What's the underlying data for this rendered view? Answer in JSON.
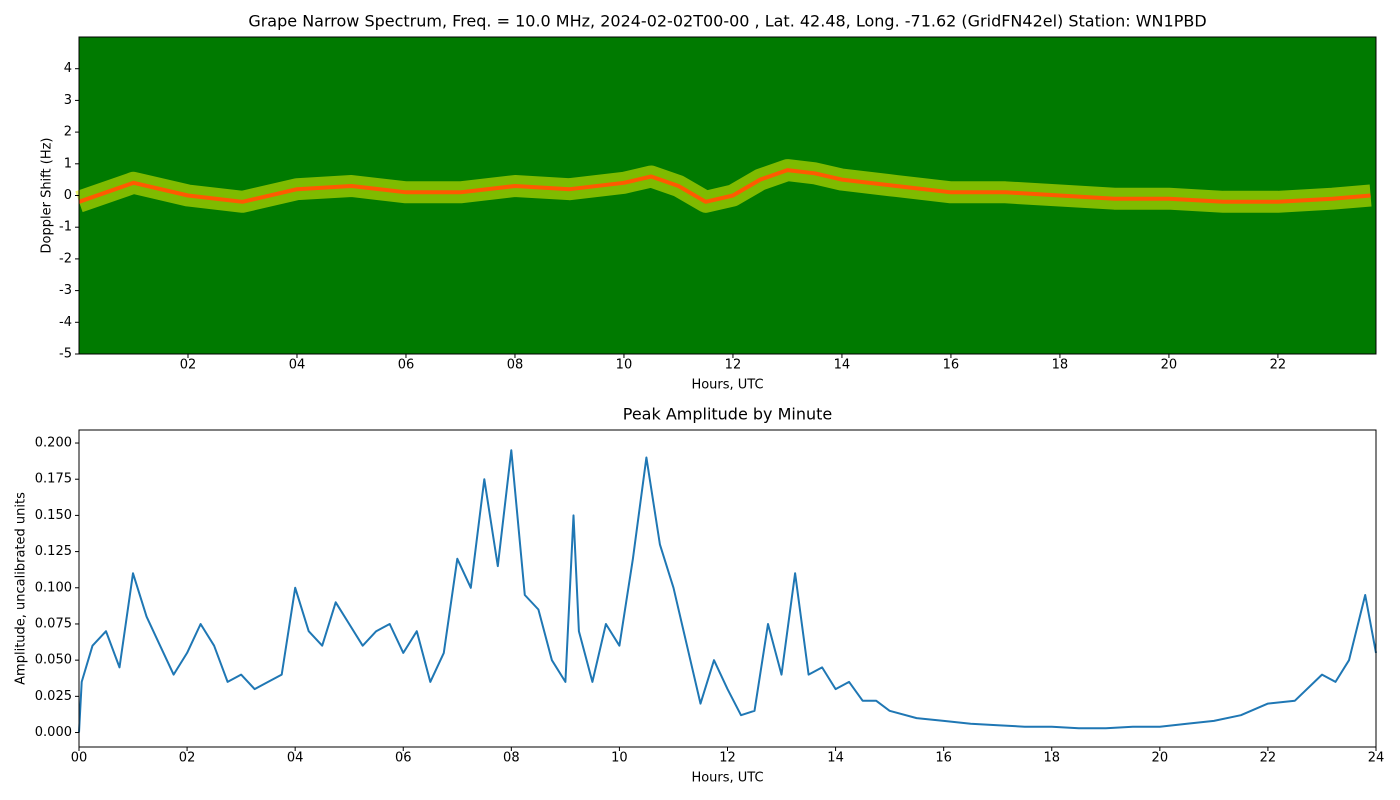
{
  "chart_data": [
    {
      "type": "spectrogram",
      "title": "Grape Narrow Spectrum, Freq. = 10.0 MHz, 2024-02-02T00-00 , Lat.  42.48, Long. -71.62 (GridFN42el) Station: WN1PBD",
      "x_label": "Hours, UTC",
      "y_label": "Doppler Shift (Hz)",
      "x": [
        0,
        1,
        2,
        3,
        4,
        5,
        6,
        7,
        8,
        9,
        10,
        10.5,
        11,
        11.5,
        12,
        12.5,
        13,
        13.5,
        14,
        15,
        16,
        17,
        18,
        19,
        20,
        21,
        22,
        23,
        23.7
      ],
      "values": [
        -0.2,
        0.4,
        0.0,
        -0.2,
        0.2,
        0.3,
        0.1,
        0.1,
        0.3,
        0.2,
        0.4,
        0.6,
        0.3,
        -0.2,
        0.0,
        0.5,
        0.8,
        0.7,
        0.5,
        0.3,
        0.1,
        0.1,
        0.0,
        -0.1,
        -0.1,
        -0.2,
        -0.2,
        -0.1,
        0.0
      ],
      "color": "#ff5a00",
      "background": "#007a00",
      "xlim": [
        0,
        23.8
      ],
      "ylim": [
        -5,
        5
      ],
      "xticks": [
        {
          "value": 2,
          "label": "02"
        },
        {
          "value": 4,
          "label": "04"
        },
        {
          "value": 6,
          "label": "06"
        },
        {
          "value": 8,
          "label": "08"
        },
        {
          "value": 10,
          "label": "10"
        },
        {
          "value": 12,
          "label": "12"
        },
        {
          "value": 14,
          "label": "14"
        },
        {
          "value": 16,
          "label": "16"
        },
        {
          "value": 18,
          "label": "18"
        },
        {
          "value": 20,
          "label": "20"
        },
        {
          "value": 22,
          "label": "22"
        }
      ],
      "yticks": [
        -5,
        -4,
        -3,
        -2,
        -1,
        0,
        1,
        2,
        3,
        4
      ]
    },
    {
      "type": "line",
      "title": "Peak Amplitude by Minute",
      "x_label": "Hours, UTC",
      "y_label": "Amplitude, uncalibrated units",
      "x": [
        0,
        0.05,
        0.25,
        0.5,
        0.75,
        1.0,
        1.25,
        1.5,
        1.75,
        2.0,
        2.25,
        2.5,
        2.75,
        3.0,
        3.25,
        3.5,
        3.75,
        4.0,
        4.25,
        4.5,
        4.75,
        5.0,
        5.25,
        5.5,
        5.75,
        6.0,
        6.25,
        6.5,
        6.75,
        7.0,
        7.25,
        7.5,
        7.75,
        8.0,
        8.25,
        8.5,
        8.75,
        9.0,
        9.15,
        9.25,
        9.5,
        9.75,
        10.0,
        10.25,
        10.5,
        10.75,
        11.0,
        11.25,
        11.5,
        11.75,
        12.0,
        12.25,
        12.5,
        12.75,
        13.0,
        13.25,
        13.5,
        13.75,
        14.0,
        14.25,
        14.5,
        14.75,
        15.0,
        15.5,
        16,
        16.5,
        17,
        17.5,
        18,
        18.5,
        19,
        19.5,
        20,
        20.5,
        21,
        21.5,
        22,
        22.5,
        23,
        23.25,
        23.5,
        23.8,
        24
      ],
      "values": [
        0.0,
        0.035,
        0.06,
        0.07,
        0.045,
        0.11,
        0.08,
        0.06,
        0.04,
        0.055,
        0.075,
        0.06,
        0.035,
        0.04,
        0.03,
        0.035,
        0.04,
        0.1,
        0.07,
        0.06,
        0.09,
        0.075,
        0.06,
        0.07,
        0.075,
        0.055,
        0.07,
        0.035,
        0.055,
        0.12,
        0.1,
        0.175,
        0.115,
        0.195,
        0.095,
        0.085,
        0.05,
        0.035,
        0.15,
        0.07,
        0.035,
        0.075,
        0.06,
        0.12,
        0.19,
        0.13,
        0.1,
        0.06,
        0.02,
        0.05,
        0.03,
        0.012,
        0.015,
        0.075,
        0.04,
        0.11,
        0.04,
        0.045,
        0.03,
        0.035,
        0.022,
        0.022,
        0.015,
        0.01,
        0.008,
        0.006,
        0.005,
        0.004,
        0.004,
        0.003,
        0.003,
        0.004,
        0.004,
        0.006,
        0.008,
        0.012,
        0.02,
        0.022,
        0.04,
        0.035,
        0.05,
        0.095,
        0.055
      ],
      "color": "#1f77b4",
      "xlim": [
        0,
        24
      ],
      "ylim": [
        -0.01,
        0.209
      ],
      "xticks": [
        {
          "value": 0,
          "label": "00"
        },
        {
          "value": 2,
          "label": "02"
        },
        {
          "value": 4,
          "label": "04"
        },
        {
          "value": 6,
          "label": "06"
        },
        {
          "value": 8,
          "label": "08"
        },
        {
          "value": 10,
          "label": "10"
        },
        {
          "value": 12,
          "label": "12"
        },
        {
          "value": 14,
          "label": "14"
        },
        {
          "value": 16,
          "label": "16"
        },
        {
          "value": 18,
          "label": "18"
        },
        {
          "value": 20,
          "label": "20"
        },
        {
          "value": 22,
          "label": "22"
        },
        {
          "value": 24,
          "label": "24"
        }
      ],
      "yticks": [
        {
          "value": 0,
          "label": "0.000"
        },
        {
          "value": 0.025,
          "label": "0.025"
        },
        {
          "value": 0.05,
          "label": "0.050"
        },
        {
          "value": 0.075,
          "label": "0.075"
        },
        {
          "value": 0.1,
          "label": "0.100"
        },
        {
          "value": 0.125,
          "label": "0.125"
        },
        {
          "value": 0.15,
          "label": "0.150"
        },
        {
          "value": 0.175,
          "label": "0.175"
        },
        {
          "value": 0.2,
          "label": "0.200"
        }
      ]
    }
  ]
}
